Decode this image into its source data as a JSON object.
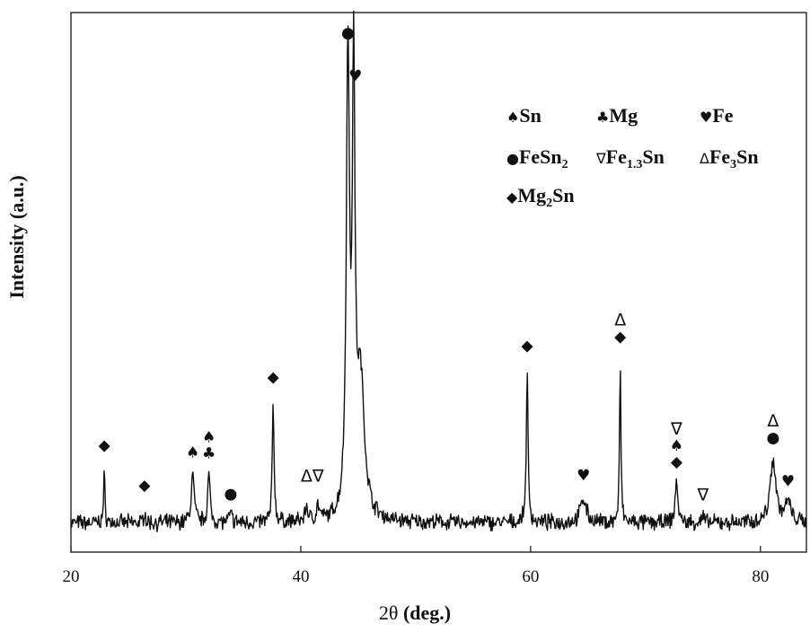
{
  "chart_data": {
    "type": "line",
    "xlabel_symbol": "2θ",
    "xlabel_unit": "(deg.)",
    "ylabel": "Intensity (a.u.)",
    "xlim": [
      20,
      84
    ],
    "ylim": [
      -6,
      105
    ],
    "x_ticks": [
      20,
      40,
      60,
      80
    ],
    "grid": false,
    "legend_position": "top-right",
    "legend": [
      {
        "symbol": "♠",
        "name": "Sn"
      },
      {
        "symbol": "♣",
        "name": "Mg"
      },
      {
        "symbol": "♥",
        "name": "Fe"
      },
      {
        "symbol": "●",
        "name": "FeSn",
        "sub": "2"
      },
      {
        "symbol": "∇",
        "name": "Fe",
        "sub": "1.3",
        "tail": "Sn"
      },
      {
        "symbol": "Δ",
        "name": "Fe",
        "sub": "3",
        "tail": "Sn"
      },
      {
        "symbol": "◆",
        "name": "Mg",
        "sub": "2",
        "tail": "Sn"
      }
    ],
    "series": [
      {
        "color": "#111111",
        "peaks": [
          {
            "x": 22.9,
            "height": 10,
            "width": 0.07
          },
          {
            "x": 26.4,
            "height": 3,
            "width": 0.07
          },
          {
            "x": 30.6,
            "height": 10,
            "width": 0.15
          },
          {
            "x": 32.0,
            "height": 10,
            "width": 0.12
          },
          {
            "x": 33.9,
            "height": 2,
            "width": 0.12
          },
          {
            "x": 37.6,
            "height": 25,
            "width": 0.09
          },
          {
            "x": 40.5,
            "height": 3,
            "width": 0.15
          },
          {
            "x": 41.5,
            "height": 3,
            "width": 0.15
          },
          {
            "x": 44.1,
            "height": 95,
            "width": 0.16
          },
          {
            "x": 44.6,
            "height": 87,
            "width": 0.14
          },
          {
            "x": 45.2,
            "height": 28,
            "width": 0.4
          },
          {
            "x": 59.7,
            "height": 31,
            "width": 0.09
          },
          {
            "x": 64.6,
            "height": 5,
            "width": 0.3
          },
          {
            "x": 67.8,
            "height": 33,
            "width": 0.07
          },
          {
            "x": 72.7,
            "height": 9,
            "width": 0.13
          },
          {
            "x": 75.0,
            "height": 1.5,
            "width": 0.1
          },
          {
            "x": 81.1,
            "height": 13,
            "width": 0.3
          },
          {
            "x": 82.4,
            "height": 4,
            "width": 0.3
          }
        ]
      }
    ],
    "annotations": [
      {
        "x": 22.9,
        "y": 15.0,
        "labels": [
          "◆"
        ]
      },
      {
        "x": 26.4,
        "y": 6.7,
        "labels": [
          "◆"
        ]
      },
      {
        "x": 30.6,
        "y": 13.5,
        "labels": [
          "♠"
        ]
      },
      {
        "x": 32.0,
        "y": 13.3,
        "labels": [
          "♣",
          "♠"
        ]
      },
      {
        "x": 33.9,
        "y": 5.0,
        "labels": [
          "●"
        ]
      },
      {
        "x": 37.6,
        "y": 29.0,
        "labels": [
          "◆"
        ]
      },
      {
        "x": 41.0,
        "y": 8.5,
        "labels": [
          "Δ∇"
        ]
      },
      {
        "x": 44.1,
        "y": 99.8,
        "labels": [
          "●"
        ]
      },
      {
        "x": 44.75,
        "y": 91.0,
        "labels": [
          "♥"
        ]
      },
      {
        "x": 59.7,
        "y": 35.5,
        "labels": [
          "◆"
        ]
      },
      {
        "x": 64.6,
        "y": 8.8,
        "labels": [
          "♥"
        ]
      },
      {
        "x": 67.8,
        "y": 37.3,
        "labels": [
          "◆",
          "Δ"
        ]
      },
      {
        "x": 72.7,
        "y": 11.5,
        "labels": [
          "◆",
          "♠",
          "∇"
        ]
      },
      {
        "x": 75.0,
        "y": 4.6,
        "labels": [
          "∇"
        ]
      },
      {
        "x": 81.1,
        "y": 16.5,
        "labels": [
          "●",
          "Δ"
        ]
      },
      {
        "x": 82.4,
        "y": 7.6,
        "labels": [
          "♥"
        ]
      }
    ]
  }
}
